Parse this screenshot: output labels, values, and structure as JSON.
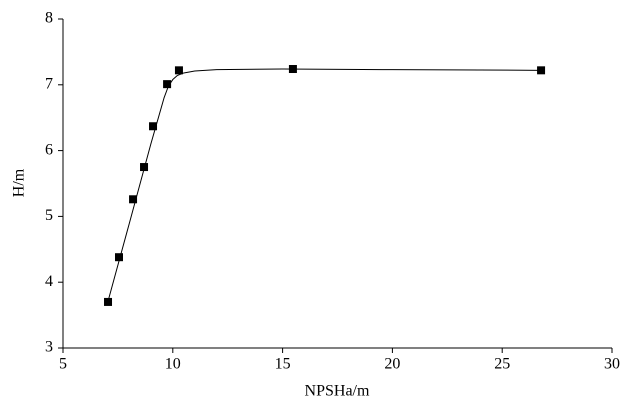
{
  "chart_data": {
    "type": "scatter",
    "x_label": "NPSHa/m",
    "y_label": "H/m",
    "xlim": [
      5,
      30
    ],
    "xticks": [
      5,
      10,
      15,
      20,
      25,
      30
    ],
    "ylim": [
      3,
      8
    ],
    "yticks": [
      3,
      4,
      5,
      6,
      7,
      8
    ],
    "series": [
      {
        "mode": "markers",
        "color": "#000000",
        "x": [
          7.05,
          7.55,
          8.19,
          8.69,
          9.1,
          9.74,
          10.28,
          15.47,
          26.77
        ],
        "values": [
          3.7,
          4.38,
          5.26,
          5.75,
          6.37,
          7.01,
          7.22,
          7.24,
          7.22
        ]
      },
      {
        "mode": "line",
        "color": "#000000",
        "x": [
          7.0,
          8.0,
          9.0,
          9.6,
          9.8,
          10.0,
          10.2,
          10.5,
          11,
          12,
          15,
          20,
          26.8
        ],
        "values": [
          3.65,
          4.87,
          6.1,
          6.8,
          6.98,
          7.08,
          7.14,
          7.18,
          7.21,
          7.23,
          7.24,
          7.23,
          7.22
        ]
      }
    ]
  }
}
